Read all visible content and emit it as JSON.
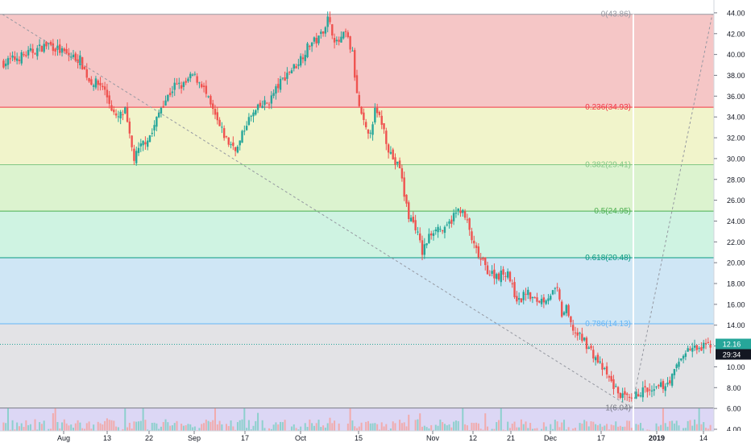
{
  "colors": {
    "up": "#26a69a",
    "down": "#ef5350",
    "fib_line": "#787b86",
    "fib_0": "#9598a1",
    "fib_0236": "#f23645",
    "fib_0382": "#81c784",
    "fib_05": "#4caf50",
    "fib_0618": "#089981",
    "fib_0786": "#64b5f6",
    "fib_1": "#787b86",
    "last_price_bg": "#26a69a",
    "countdown_bg": "#131722",
    "axis_text": "#131722",
    "trend_line": "#9598a1"
  },
  "chart_data": {
    "type": "candlestick",
    "title": "",
    "xlabel": "",
    "ylabel": "",
    "ylim": [
      4.0,
      45.0
    ],
    "y_ticks": [
      "4.00",
      "6.00",
      "8.00",
      "10.00",
      "12.00",
      "14.00",
      "16.00",
      "18.00",
      "20.00",
      "22.00",
      "24.00",
      "26.00",
      "28.00",
      "30.00",
      "32.00",
      "34.00",
      "36.00",
      "38.00",
      "40.00",
      "42.00",
      "44.00"
    ],
    "x_ticks": [
      "Aug",
      "13",
      "22",
      "Sep",
      "17",
      "Oct",
      "15",
      "Nov",
      "12",
      "21",
      "Dec",
      "17",
      "2019",
      "14"
    ],
    "last_price": "12.16",
    "countdown": "29:34",
    "fib_levels": [
      {
        "ratio": 0,
        "price": 43.86,
        "label": "0(43.86)"
      },
      {
        "ratio": 0.236,
        "price": 34.93,
        "label": "0.236(34.93)"
      },
      {
        "ratio": 0.382,
        "price": 29.41,
        "label": "0.382(29.41)"
      },
      {
        "ratio": 0.5,
        "price": 24.95,
        "label": "0.5(24.95)"
      },
      {
        "ratio": 0.618,
        "price": 20.48,
        "label": "0.618(20.48)"
      },
      {
        "ratio": 0.786,
        "price": 14.13,
        "label": "0.786(14.13)"
      },
      {
        "ratio": 1,
        "price": 6.04,
        "label": "1(6.04)"
      }
    ],
    "close_anchors": [
      [
        0,
        39.2
      ],
      [
        10,
        40.0
      ],
      [
        20,
        41.0
      ],
      [
        28,
        40.0
      ],
      [
        34,
        39.5
      ],
      [
        38,
        37.5
      ],
      [
        44,
        37.0
      ],
      [
        50,
        33.8
      ],
      [
        54,
        34.5
      ],
      [
        56,
        32.0
      ],
      [
        58,
        30.0
      ],
      [
        62,
        31.5
      ],
      [
        66,
        32.5
      ],
      [
        70,
        35.0
      ],
      [
        76,
        37.0
      ],
      [
        80,
        37.0
      ],
      [
        84,
        38.0
      ],
      [
        88,
        37.2
      ],
      [
        92,
        35.0
      ],
      [
        96,
        33.0
      ],
      [
        100,
        31.5
      ],
      [
        104,
        31.0
      ],
      [
        108,
        33.5
      ],
      [
        114,
        35.0
      ],
      [
        118,
        35.5
      ],
      [
        122,
        37.0
      ],
      [
        126,
        38.2
      ],
      [
        130,
        39.0
      ],
      [
        136,
        41.0
      ],
      [
        140,
        41.5
      ],
      [
        144,
        43.4
      ],
      [
        148,
        41.0
      ],
      [
        152,
        42.0
      ],
      [
        155,
        40.0
      ],
      [
        157,
        36.0
      ],
      [
        159,
        34.0
      ],
      [
        162,
        32.0
      ],
      [
        165,
        34.5
      ],
      [
        168,
        33.5
      ],
      [
        171,
        31.0
      ],
      [
        174,
        29.5
      ],
      [
        176,
        29.2
      ],
      [
        178,
        26.5
      ],
      [
        180,
        24.5
      ],
      [
        183,
        23.5
      ],
      [
        186,
        21.0
      ],
      [
        189,
        22.5
      ],
      [
        192,
        23.5
      ],
      [
        196,
        23.0
      ],
      [
        200,
        24.5
      ],
      [
        203,
        25.2
      ],
      [
        206,
        23.8
      ],
      [
        209,
        21.5
      ],
      [
        212,
        20.2
      ],
      [
        216,
        19.0
      ],
      [
        220,
        18.8
      ],
      [
        224,
        19.2
      ],
      [
        226,
        17.5
      ],
      [
        229,
        16.2
      ],
      [
        232,
        17.2
      ],
      [
        236,
        16.3
      ],
      [
        240,
        16.5
      ],
      [
        243,
        17.0
      ],
      [
        246,
        17.3
      ],
      [
        248,
        15.0
      ],
      [
        250,
        15.5
      ],
      [
        252,
        14.0
      ],
      [
        255,
        13.0
      ],
      [
        258,
        12.5
      ],
      [
        261,
        11.5
      ],
      [
        264,
        10.5
      ],
      [
        267,
        9.5
      ],
      [
        270,
        8.5
      ],
      [
        273,
        7.5
      ],
      [
        276,
        7.0
      ],
      [
        279,
        6.6
      ],
      [
        282,
        7.5
      ],
      [
        285,
        7.8
      ],
      [
        288,
        7.4
      ],
      [
        291,
        8.0
      ],
      [
        294,
        8.3
      ],
      [
        297,
        9.0
      ],
      [
        300,
        10.5
      ],
      [
        303,
        11.5
      ],
      [
        306,
        11.8
      ],
      [
        309,
        11.6
      ],
      [
        312,
        12.0
      ],
      [
        314,
        12.16
      ]
    ],
    "volume_range": [
      0.05,
      0.55
    ]
  }
}
